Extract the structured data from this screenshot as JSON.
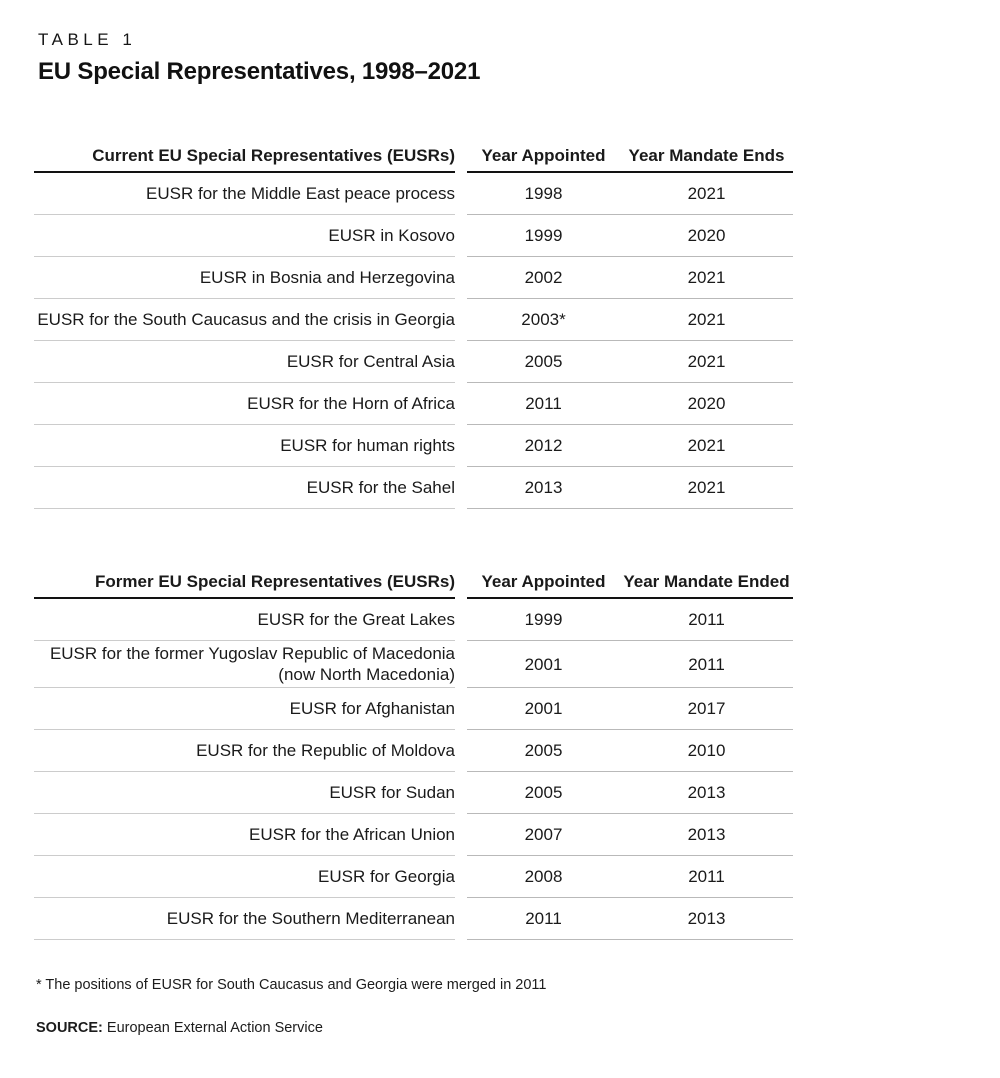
{
  "header": {
    "kicker": "TABLE 1",
    "title": "EU Special Representatives, 1998–2021"
  },
  "tables": [
    {
      "col1_header": "Current EU Special Representatives (EUSRs)",
      "col2_header": "Year Appointed",
      "col3_header": "Year Mandate Ends",
      "rows": [
        [
          "EUSR for the Middle East peace process",
          "1998",
          "2021"
        ],
        [
          "EUSR in Kosovo",
          "1999",
          "2020"
        ],
        [
          "EUSR in Bosnia and Herzegovina",
          "2002",
          "2021"
        ],
        [
          "EUSR for the South Caucasus and the crisis in Georgia",
          "2003*",
          "2021"
        ],
        [
          "EUSR for Central Asia",
          "2005",
          "2021"
        ],
        [
          "EUSR for the Horn of Africa",
          "2011",
          "2020"
        ],
        [
          "EUSR for human rights",
          "2012",
          "2021"
        ],
        [
          "EUSR for the Sahel",
          "2013",
          "2021"
        ]
      ]
    },
    {
      "col1_header": "Former EU Special Representatives (EUSRs)",
      "col2_header": "Year Appointed",
      "col3_header": "Year Mandate Ended",
      "rows": [
        [
          "EUSR for the Great Lakes",
          "1999",
          "2011"
        ],
        [
          "EUSR for the former Yugoslav Republic of Macedonia (now North Macedonia)",
          "2001",
          "2011"
        ],
        [
          "EUSR for Afghanistan",
          "2001",
          "2017"
        ],
        [
          "EUSR for the Republic of Moldova",
          "2005",
          "2010"
        ],
        [
          "EUSR for Sudan",
          "2005",
          "2013"
        ],
        [
          "EUSR for the African Union",
          "2007",
          "2013"
        ],
        [
          "EUSR for Georgia",
          "2008",
          "2011"
        ],
        [
          "EUSR for the Southern Mediterranean",
          "2011",
          "2013"
        ]
      ]
    }
  ],
  "notes": {
    "footnote": "* The positions of EUSR for South Caucasus and Georgia were merged in 2011",
    "source_label": "SOURCE:",
    "source_text": "European External Action Service"
  },
  "colors": {
    "text": "#1a1a1a",
    "header_rule": "#121212",
    "row_rule_left": "#cccccc",
    "row_rule_right": "#b9b9b9",
    "background": "#ffffff"
  }
}
